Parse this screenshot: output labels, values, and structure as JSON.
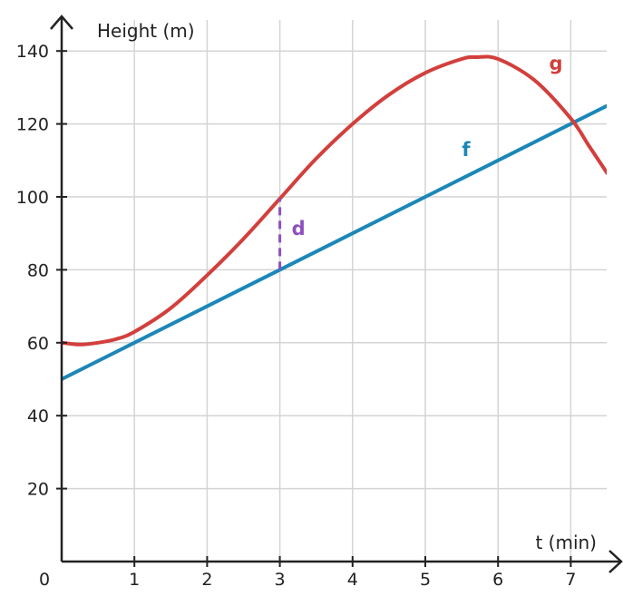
{
  "chart_data": {
    "type": "line",
    "title": "",
    "xlabel": "t (min)",
    "ylabel": "Height (m)",
    "origin_label": "0",
    "xlim": [
      0,
      7.5
    ],
    "ylim": [
      0,
      150
    ],
    "x_ticks": [
      1,
      2,
      3,
      4,
      5,
      6,
      7
    ],
    "y_ticks": [
      20,
      40,
      60,
      80,
      100,
      120,
      140
    ],
    "grid": true,
    "series": [
      {
        "name": "f",
        "color": "#1a87b8",
        "x": [
          0,
          7.5
        ],
        "y": [
          50,
          125
        ]
      },
      {
        "name": "g",
        "color": "#d23f3c",
        "x": [
          0,
          0.25,
          0.5,
          0.75,
          1,
          1.5,
          2,
          2.5,
          3,
          3.5,
          4,
          4.5,
          5,
          5.5,
          5.7,
          6,
          6.5,
          7,
          7.25,
          7.5
        ],
        "y": [
          60,
          59.5,
          60,
          61,
          63,
          69.5,
          78.5,
          88.5,
          99.5,
          110.5,
          120,
          128,
          134,
          137.8,
          138.3,
          137.8,
          132,
          121.5,
          114,
          106.5
        ]
      }
    ],
    "annotation": {
      "label": "d",
      "color": "#8e4fbf",
      "x": 3,
      "y_from": 80,
      "y_to": 99.5
    }
  }
}
